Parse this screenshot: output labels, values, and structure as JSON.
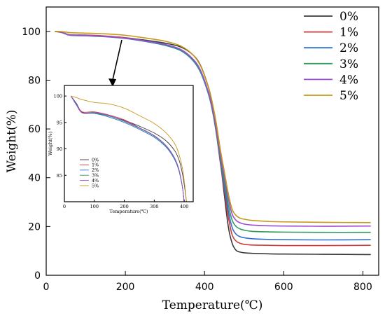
{
  "chart_data": [
    {
      "type": "line",
      "title": "",
      "xlabel": "Temperature(℃)",
      "ylabel": "Weight(%)",
      "xlim": [
        0,
        840
      ],
      "ylim": [
        0,
        110
      ],
      "xticks": [
        0,
        200,
        400,
        600,
        800
      ],
      "yticks": [
        0,
        20,
        40,
        60,
        80,
        100
      ],
      "legend_position": "top-right",
      "series": [
        {
          "name": "0%",
          "color": "#3a3a3a",
          "x": [
            22,
            40,
            60,
            100,
            150,
            200,
            250,
            300,
            340,
            370,
            390,
            410,
            420,
            430,
            440,
            450,
            460,
            470,
            480,
            490,
            500,
            520,
            560,
            600,
            700,
            820
          ],
          "y": [
            100,
            99.6,
            98.6,
            98.4,
            98.0,
            97.4,
            96.4,
            95.2,
            93.6,
            90.5,
            86.0,
            77.0,
            70.0,
            60.0,
            47.0,
            33.0,
            20.0,
            13.0,
            10.2,
            9.5,
            9.2,
            9.0,
            8.8,
            8.7,
            8.6,
            8.5
          ]
        },
        {
          "name": "1%",
          "color": "#d63a3a",
          "x": [
            22,
            40,
            60,
            100,
            150,
            200,
            250,
            300,
            340,
            370,
            390,
            410,
            420,
            430,
            440,
            450,
            460,
            470,
            480,
            490,
            500,
            520,
            560,
            600,
            700,
            820
          ],
          "y": [
            100,
            99.6,
            98.6,
            98.5,
            98.1,
            97.4,
            96.1,
            94.5,
            92.3,
            88.5,
            83.5,
            74.5,
            67.5,
            58.0,
            46.0,
            35.0,
            24.0,
            16.5,
            14.0,
            13.1,
            12.7,
            12.4,
            12.3,
            12.2,
            12.2,
            12.3
          ]
        },
        {
          "name": "2%",
          "color": "#2f6fd3",
          "x": [
            22,
            40,
            60,
            100,
            150,
            200,
            250,
            300,
            340,
            370,
            390,
            410,
            420,
            430,
            440,
            450,
            460,
            470,
            480,
            490,
            500,
            520,
            560,
            600,
            700,
            820
          ],
          "y": [
            100,
            99.5,
            98.4,
            98.2,
            97.8,
            97.1,
            95.9,
            94.3,
            92.1,
            88.2,
            83.2,
            74.2,
            67.5,
            58.5,
            47.0,
            36.5,
            26.5,
            19.5,
            16.8,
            15.8,
            15.4,
            15.0,
            14.7,
            14.6,
            14.5,
            14.6
          ]
        },
        {
          "name": "3%",
          "color": "#2e9a5e",
          "x": [
            22,
            40,
            60,
            100,
            150,
            200,
            250,
            300,
            340,
            370,
            390,
            410,
            420,
            430,
            440,
            450,
            460,
            470,
            480,
            490,
            500,
            520,
            560,
            600,
            700,
            820
          ],
          "y": [
            100,
            99.5,
            98.5,
            98.3,
            97.9,
            97.2,
            96.0,
            94.5,
            92.3,
            88.5,
            83.5,
            74.5,
            68.0,
            59.0,
            48.0,
            38.5,
            29.0,
            22.5,
            20.0,
            19.0,
            18.5,
            18.0,
            17.8,
            17.7,
            17.6,
            17.6
          ]
        },
        {
          "name": "4%",
          "color": "#9a4fd0",
          "x": [
            22,
            40,
            60,
            100,
            150,
            200,
            250,
            300,
            340,
            370,
            390,
            410,
            420,
            430,
            440,
            450,
            460,
            470,
            480,
            490,
            500,
            520,
            560,
            600,
            700,
            820
          ],
          "y": [
            100,
            99.5,
            98.5,
            98.3,
            97.9,
            97.2,
            96.1,
            94.7,
            92.6,
            88.8,
            84.0,
            75.0,
            68.5,
            60.0,
            49.5,
            40.5,
            31.5,
            25.0,
            22.5,
            21.5,
            21.0,
            20.6,
            20.3,
            20.2,
            20.1,
            20.2
          ]
        },
        {
          "name": "5%",
          "color": "#c8981a",
          "x": [
            22,
            40,
            60,
            100,
            150,
            200,
            250,
            300,
            340,
            370,
            390,
            410,
            420,
            430,
            440,
            450,
            460,
            470,
            480,
            490,
            500,
            520,
            560,
            600,
            700,
            820
          ],
          "y": [
            100,
            99.9,
            99.5,
            99.3,
            99.0,
            98.4,
            97.3,
            96.0,
            94.0,
            90.5,
            85.8,
            77.0,
            70.5,
            62.0,
            51.5,
            42.5,
            33.5,
            27.0,
            24.5,
            23.4,
            23.0,
            22.5,
            22.1,
            21.9,
            21.7,
            21.6
          ]
        }
      ]
    },
    {
      "type": "line",
      "title": "",
      "xlabel": "Temperature(℃)",
      "ylabel": "Weight(%)",
      "xlim": [
        0,
        430
      ],
      "ylim": [
        80,
        102
      ],
      "xticks": [
        0,
        100,
        200,
        300,
        400
      ],
      "yticks": [
        85,
        90,
        95,
        100
      ],
      "legend_position": "bottom-left",
      "series": [
        {
          "name": "0%",
          "color": "#3a3a3a",
          "x": [
            22,
            40,
            60,
            100,
            150,
            200,
            250,
            300,
            340,
            370,
            385,
            395,
            402,
            408
          ],
          "y": [
            100,
            98.6,
            96.9,
            96.8,
            96.2,
            95.4,
            94.3,
            93.0,
            91.5,
            89.5,
            87.5,
            85.0,
            82.5,
            79.8
          ]
        },
        {
          "name": "1%",
          "color": "#d63a3a",
          "x": [
            22,
            40,
            60,
            100,
            150,
            200,
            250,
            300,
            340,
            365,
            380,
            390,
            396,
            400
          ],
          "y": [
            100,
            98.4,
            97.0,
            97.0,
            96.4,
            95.5,
            94.0,
            92.5,
            90.5,
            88.5,
            86.5,
            84.0,
            82.0,
            79.8
          ]
        },
        {
          "name": "2%",
          "color": "#2f6fd3",
          "x": [
            22,
            40,
            60,
            100,
            150,
            200,
            250,
            300,
            340,
            365,
            380,
            390,
            396,
            400
          ],
          "y": [
            100,
            98.3,
            96.8,
            96.7,
            96.0,
            95.0,
            93.7,
            92.2,
            90.3,
            88.3,
            86.3,
            84.0,
            82.0,
            79.8
          ]
        },
        {
          "name": "3%",
          "color": "#2e9a5e",
          "x": [
            22,
            40,
            60,
            100,
            150,
            200,
            250,
            300,
            340,
            365,
            380,
            390,
            396,
            400
          ],
          "y": [
            100,
            98.4,
            96.8,
            96.8,
            96.2,
            95.2,
            93.9,
            92.4,
            90.5,
            88.5,
            86.5,
            84.0,
            82.0,
            79.8
          ]
        },
        {
          "name": "4%",
          "color": "#9a4fd0",
          "x": [
            22,
            40,
            60,
            100,
            150,
            200,
            250,
            300,
            340,
            365,
            380,
            390,
            396,
            400
          ],
          "y": [
            100,
            98.4,
            96.8,
            96.9,
            96.3,
            95.3,
            94.0,
            92.5,
            90.6,
            88.6,
            86.6,
            84.2,
            82.0,
            79.8
          ]
        },
        {
          "name": "5%",
          "color": "#c8981a",
          "x": [
            22,
            40,
            60,
            100,
            150,
            200,
            250,
            300,
            340,
            370,
            385,
            395,
            402,
            408
          ],
          "y": [
            100,
            99.7,
            99.3,
            98.8,
            98.5,
            97.7,
            96.3,
            94.8,
            93.0,
            90.8,
            88.5,
            86.0,
            83.0,
            79.8
          ]
        }
      ]
    }
  ]
}
